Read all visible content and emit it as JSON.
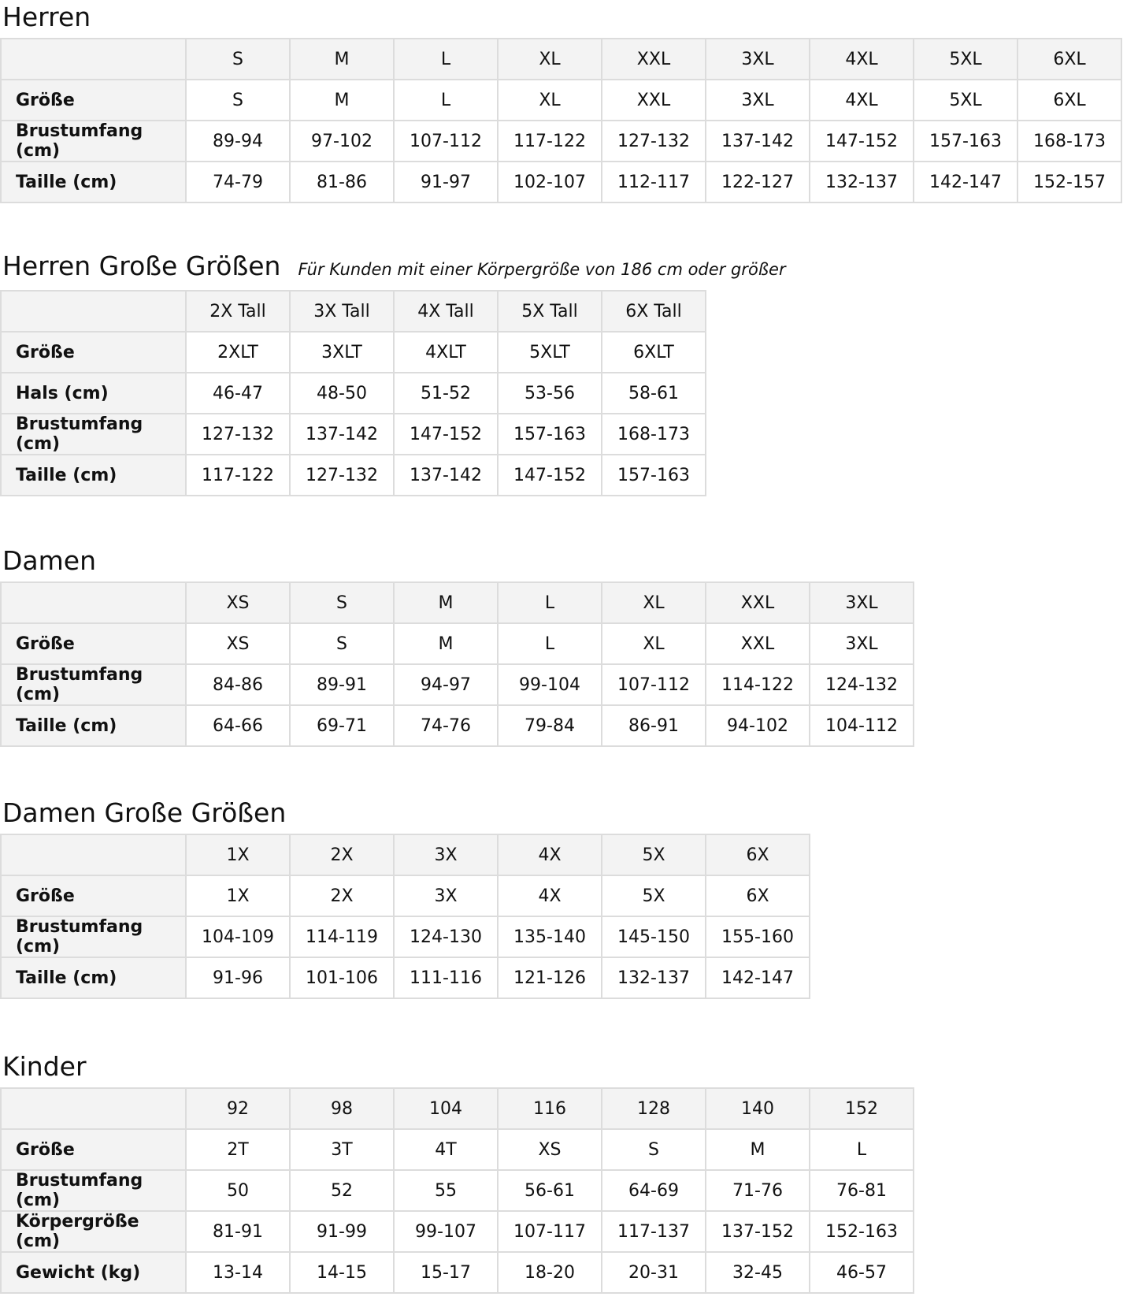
{
  "sections": [
    {
      "title": "Herren",
      "subtitle": "",
      "header": [
        "S",
        "M",
        "L",
        "XL",
        "XXL",
        "3XL",
        "4XL",
        "5XL",
        "6XL"
      ],
      "rows": [
        {
          "label": "Größe",
          "values": [
            "S",
            "M",
            "L",
            "XL",
            "XXL",
            "3XL",
            "4XL",
            "5XL",
            "6XL"
          ]
        },
        {
          "label": "Brustumfang (cm)",
          "values": [
            "89-94",
            "97-102",
            "107-112",
            "117-122",
            "127-132",
            "137-142",
            "147-152",
            "157-163",
            "168-173"
          ]
        },
        {
          "label": "Taille (cm)",
          "values": [
            "74-79",
            "81-86",
            "91-97",
            "102-107",
            "112-117",
            "122-127",
            "132-137",
            "142-147",
            "152-157"
          ]
        }
      ]
    },
    {
      "title": "Herren Große Größen",
      "subtitle": "Für Kunden mit einer Körpergröße von 186 cm oder größer",
      "header": [
        "2X Tall",
        "3X Tall",
        "4X Tall",
        "5X Tall",
        "6X Tall"
      ],
      "rows": [
        {
          "label": "Größe",
          "values": [
            "2XLT",
            "3XLT",
            "4XLT",
            "5XLT",
            "6XLT"
          ]
        },
        {
          "label": "Hals (cm)",
          "values": [
            "46-47",
            "48-50",
            "51-52",
            "53-56",
            "58-61"
          ]
        },
        {
          "label": "Brustumfang (cm)",
          "values": [
            "127-132",
            "137-142",
            "147-152",
            "157-163",
            "168-173"
          ]
        },
        {
          "label": "Taille (cm)",
          "values": [
            "117-122",
            "127-132",
            "137-142",
            "147-152",
            "157-163"
          ]
        }
      ]
    },
    {
      "title": "Damen",
      "subtitle": "",
      "header": [
        "XS",
        "S",
        "M",
        "L",
        "XL",
        "XXL",
        "3XL"
      ],
      "rows": [
        {
          "label": "Größe",
          "values": [
            "XS",
            "S",
            "M",
            "L",
            "XL",
            "XXL",
            "3XL"
          ]
        },
        {
          "label": "Brustumfang (cm)",
          "values": [
            "84-86",
            "89-91",
            "94-97",
            "99-104",
            "107-112",
            "114-122",
            "124-132"
          ]
        },
        {
          "label": "Taille (cm)",
          "values": [
            "64-66",
            "69-71",
            "74-76",
            "79-84",
            "86-91",
            "94-102",
            "104-112"
          ]
        }
      ]
    },
    {
      "title": "Damen Große Größen",
      "subtitle": "",
      "header": [
        "1X",
        "2X",
        "3X",
        "4X",
        "5X",
        "6X"
      ],
      "rows": [
        {
          "label": "Größe",
          "values": [
            "1X",
            "2X",
            "3X",
            "4X",
            "5X",
            "6X"
          ]
        },
        {
          "label": "Brustumfang (cm)",
          "values": [
            "104-109",
            "114-119",
            "124-130",
            "135-140",
            "145-150",
            "155-160"
          ]
        },
        {
          "label": "Taille (cm)",
          "values": [
            "91-96",
            "101-106",
            "111-116",
            "121-126",
            "132-137",
            "142-147"
          ]
        }
      ]
    },
    {
      "title": "Kinder",
      "subtitle": "",
      "header": [
        "92",
        "98",
        "104",
        "116",
        "128",
        "140",
        "152"
      ],
      "rows": [
        {
          "label": "Größe",
          "values": [
            "2T",
            "3T",
            "4T",
            "XS",
            "S",
            "M",
            "L"
          ]
        },
        {
          "label": "Brustumfang (cm)",
          "values": [
            "50",
            "52",
            "55",
            "56-61",
            "64-69",
            "71-76",
            "76-81"
          ]
        },
        {
          "label": "Körpergröße (cm)",
          "values": [
            "81-91",
            "91-99",
            "99-107",
            "107-117",
            "117-137",
            "137-152",
            "152-163"
          ]
        },
        {
          "label": "Gewicht (kg)",
          "values": [
            "13-14",
            "14-15",
            "15-17",
            "18-20",
            "20-31",
            "32-45",
            "46-57"
          ]
        }
      ]
    }
  ]
}
